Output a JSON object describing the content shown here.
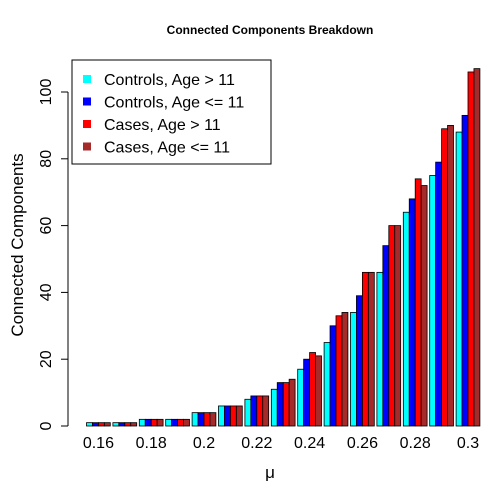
{
  "chart_data": {
    "type": "bar",
    "title": "Connected Components Breakdown",
    "xlabel": "μ",
    "ylabel": "Connected Components",
    "categories": [
      "0.16",
      "0.17",
      "0.18",
      "0.19",
      "0.2",
      "0.21",
      "0.22",
      "0.23",
      "0.24",
      "0.25",
      "0.26",
      "0.27",
      "0.28",
      "0.29",
      "0.3"
    ],
    "x_tick_labels": [
      "0.16",
      "0.18",
      "0.2",
      "0.22",
      "0.24",
      "0.26",
      "0.28",
      "0.3"
    ],
    "y_ticks": [
      0,
      20,
      40,
      60,
      80,
      100
    ],
    "ylim": [
      0,
      110
    ],
    "grid": false,
    "legend_position": "top-left",
    "series": [
      {
        "name": "Controls, Age > 11",
        "color": "#00FFFF",
        "values": [
          1,
          1,
          2,
          2,
          4,
          6,
          8,
          11,
          17,
          25,
          34,
          46,
          64,
          75,
          88
        ]
      },
      {
        "name": "Controls, Age <= 11",
        "color": "#0000FF",
        "values": [
          1,
          1,
          2,
          2,
          4,
          6,
          9,
          13,
          20,
          30,
          39,
          54,
          68,
          79,
          93
        ]
      },
      {
        "name": "Cases, Age > 11",
        "color": "#FF0000",
        "values": [
          1,
          1,
          2,
          2,
          4,
          6,
          9,
          13,
          22,
          33,
          46,
          60,
          74,
          89,
          106
        ]
      },
      {
        "name": "Cases, Age <= 11",
        "color": "#A52A2A",
        "values": [
          1,
          1,
          2,
          2,
          4,
          6,
          9,
          14,
          21,
          34,
          46,
          60,
          72,
          90,
          107
        ]
      }
    ]
  }
}
